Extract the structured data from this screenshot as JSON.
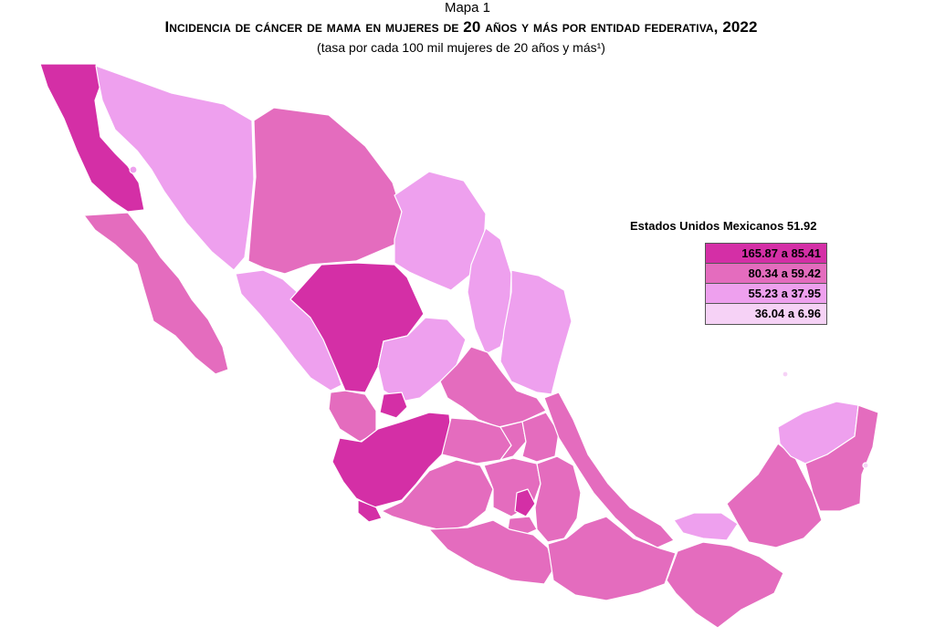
{
  "header": {
    "map_number": "Mapa 1",
    "title": "Incidencia de cáncer de mama en mujeres de 20 años y más por entidad federativa, 2022",
    "subtitle": "(tasa por cada 100 mil mujeres de 20 años y más¹)"
  },
  "legend": {
    "national_label": "Estados Unidos Mexicanos 51.92",
    "classes": [
      {
        "label": "165.87 a 85.41",
        "color": "#d42fa6"
      },
      {
        "label": "80.34 a 59.42",
        "color": "#e46cbe"
      },
      {
        "label": "55.23 a 37.95",
        "color": "#eea0ee"
      },
      {
        "label": "36.04 a 6.96",
        "color": "#f6d2f6"
      }
    ]
  },
  "states": [
    {
      "name": "Baja California",
      "class": 0
    },
    {
      "name": "Baja California Sur",
      "class": 1
    },
    {
      "name": "Sonora",
      "class": 2
    },
    {
      "name": "Chihuahua",
      "class": 1
    },
    {
      "name": "Coahuila",
      "class": 2
    },
    {
      "name": "Nuevo León",
      "class": 2
    },
    {
      "name": "Tamaulipas",
      "class": 2
    },
    {
      "name": "Sinaloa",
      "class": 2
    },
    {
      "name": "Durango",
      "class": 0
    },
    {
      "name": "Zacatecas",
      "class": 2
    },
    {
      "name": "San Luis Potosí",
      "class": 3
    },
    {
      "name": "Nayarit",
      "class": 1
    },
    {
      "name": "Aguascalientes",
      "class": 0
    },
    {
      "name": "Jalisco",
      "class": 0
    },
    {
      "name": "Guanajuato",
      "class": 1
    },
    {
      "name": "Querétaro",
      "class": 1
    },
    {
      "name": "Hidalgo",
      "class": 3
    },
    {
      "name": "Veracruz",
      "class": 1
    },
    {
      "name": "Colima",
      "class": 0
    },
    {
      "name": "Michoacán",
      "class": 3
    },
    {
      "name": "Estado de México",
      "class": 3
    },
    {
      "name": "Ciudad de México",
      "class": 0
    },
    {
      "name": "Tlaxcala",
      "class": 3
    },
    {
      "name": "Morelos",
      "class": 3
    },
    {
      "name": "Puebla",
      "class": 3
    },
    {
      "name": "Guerrero",
      "class": 3
    },
    {
      "name": "Oaxaca",
      "class": 1
    },
    {
      "name": "Tabasco",
      "class": 2
    },
    {
      "name": "Chiapas",
      "class": 3
    },
    {
      "name": "Campeche",
      "class": 1
    },
    {
      "name": "Yucatán",
      "class": 2
    },
    {
      "name": "Quintana Roo",
      "class": 3
    }
  ]
}
